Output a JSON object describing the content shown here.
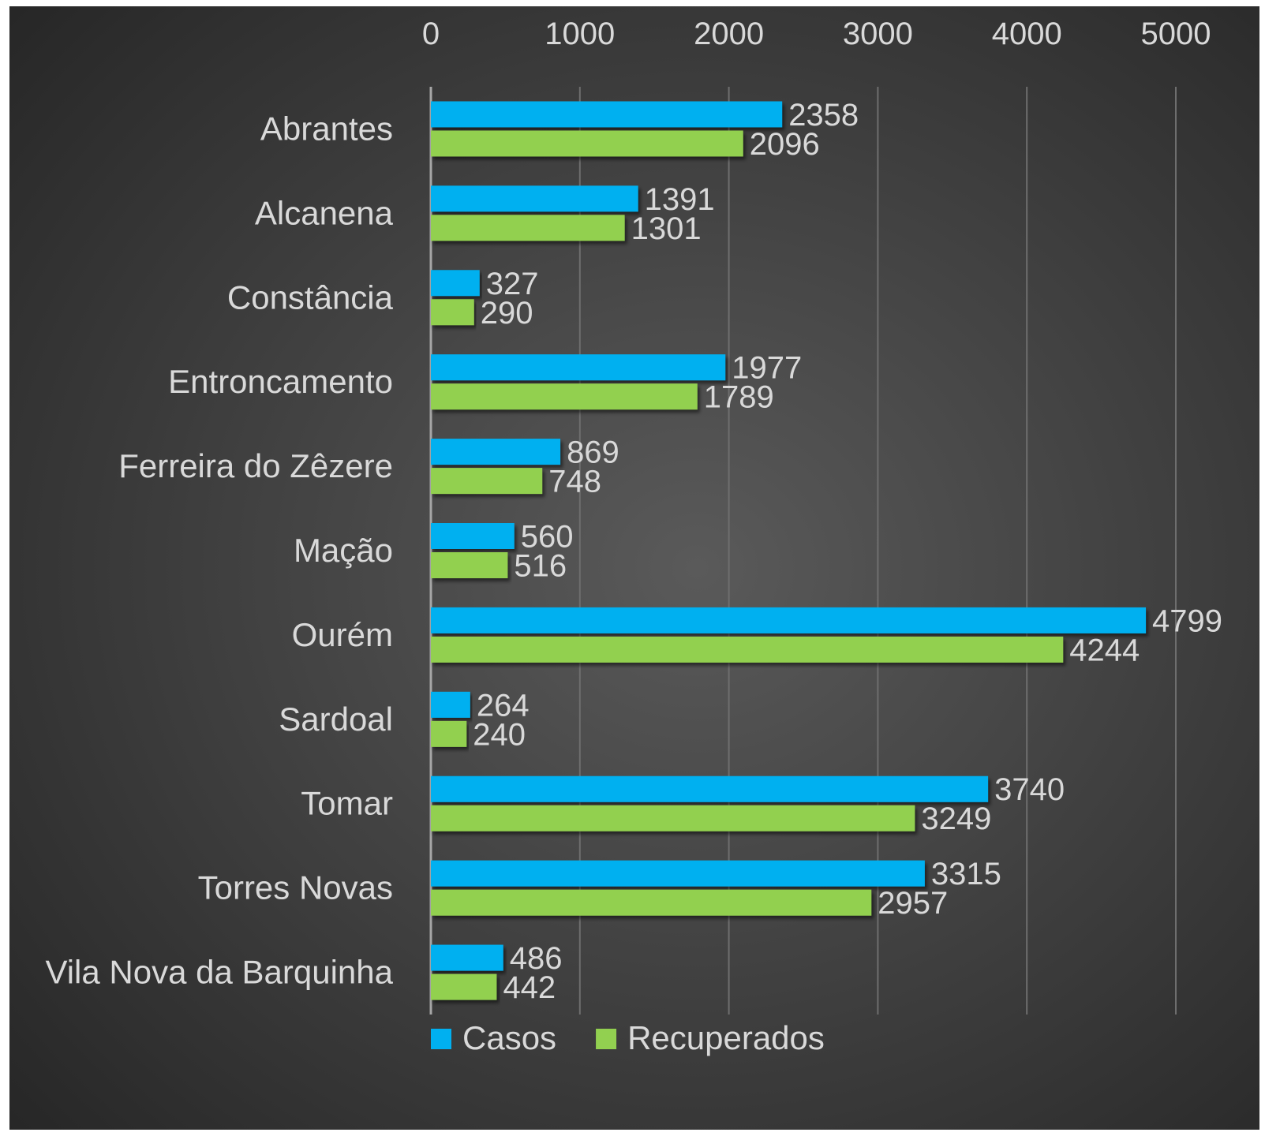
{
  "chart_data": {
    "type": "bar",
    "orientation": "horizontal",
    "categories": [
      "Abrantes",
      "Alcanena",
      "Constância",
      "Entroncamento",
      "Ferreira do Zêzere",
      "Mação",
      "Ourém",
      "Sardoal",
      "Tomar",
      "Torres Novas",
      "Vila Nova da Barquinha"
    ],
    "series": [
      {
        "name": "Casos",
        "color": "#00b0f0",
        "values": [
          2358,
          1391,
          327,
          1977,
          869,
          560,
          4799,
          264,
          3740,
          3315,
          486
        ]
      },
      {
        "name": "Recuperados",
        "color": "#92d050",
        "values": [
          2096,
          1301,
          290,
          1789,
          748,
          516,
          4244,
          240,
          3249,
          2957,
          442
        ]
      }
    ],
    "xlim": [
      0,
      5000
    ],
    "xticks": [
      "0",
      "1000",
      "2000",
      "3000",
      "4000",
      "5000"
    ],
    "axis_position": "top",
    "grid": true,
    "legend_position": "bottom",
    "background": "#3a3a3a"
  }
}
